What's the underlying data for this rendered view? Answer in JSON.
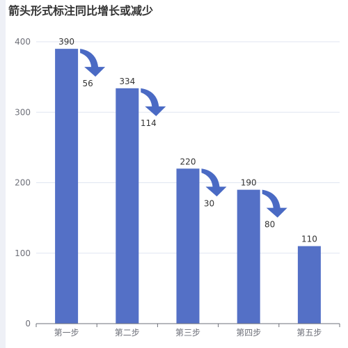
{
  "chart_data": {
    "type": "bar",
    "title": "箭头形式标注同比增长或减少",
    "categories": [
      "第一步",
      "第二步",
      "第三步",
      "第四步",
      "第五步"
    ],
    "values": [
      390,
      334,
      220,
      190,
      110
    ],
    "decreases": [
      "56",
      "114",
      "30",
      "80"
    ],
    "ylim": [
      0,
      400
    ],
    "yticks": [
      "0",
      "100",
      "200",
      "300",
      "400"
    ],
    "grid": true,
    "legend": "none"
  },
  "colors": {
    "bar": "#5470c6",
    "arrow": "#4a6ac4",
    "grid": "#e0e6f1",
    "axis": "#6e7079"
  }
}
